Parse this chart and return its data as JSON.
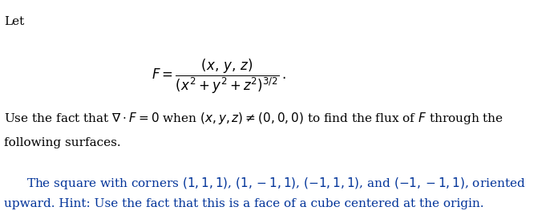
{
  "bg_color": "#ffffff",
  "text_color_black": "#000000",
  "text_color_blue": "#003399",
  "let_text": "Let",
  "formula_F": "F = \\dfrac{(x,\\, y,\\, z)}{(x^2 + y^2 + z^2)^{3/2}}\\,.",
  "body_text_line1": "Use the fact that $\\nabla \\cdot F = 0$ when $(x, y, z) \\neq (0, 0, 0)$ to find the flux of $F$ through the",
  "body_text_line2": "following surfaces.",
  "hint_line1": "The square with corners $(1, 1, 1)$, $(1, -1, 1)$, $(-1, 1, 1)$, and $(-1, -1, 1)$, oriented",
  "hint_line2": "upward. Hint: Use the fact that this is a face of a cube centered at the origin.",
  "figsize": [
    6.76,
    2.63
  ],
  "dpi": 100
}
